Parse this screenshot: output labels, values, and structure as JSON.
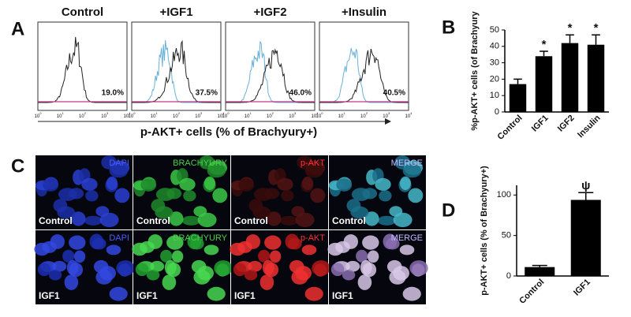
{
  "panel_labels": [
    "A",
    "B",
    "C",
    "D"
  ],
  "flow": {
    "samples": [
      "Control",
      "+IGF1",
      "+IGF2",
      "+Insulin"
    ],
    "gates": [
      "19.0%",
      "37.5%",
      "46.0%",
      "40.5%"
    ],
    "tick_base": "10",
    "tick_exponents": [
      "0",
      "1",
      "2",
      "3",
      "4"
    ],
    "xlabel": "p-AKT+ cells (% of Brachyury+)"
  },
  "chart_data": [
    {
      "type": "bar",
      "ylabel": "%p-AKT+ cells (of Brachyury",
      "categories": [
        "Control",
        "IGF1",
        "IGF2",
        "Insulin"
      ],
      "values": [
        17,
        34,
        42,
        41
      ],
      "errors": [
        3,
        3,
        5,
        6
      ],
      "annotations": [
        null,
        "*",
        "*",
        "*"
      ],
      "color": "#000000",
      "ylim": [
        0,
        50
      ],
      "yticks": [
        0,
        10,
        20,
        30,
        40,
        50
      ]
    },
    {
      "type": "bar",
      "ylabel": "p-AKT+ cells (% of Brachyury+)",
      "categories": [
        "Control",
        "IGF1"
      ],
      "values": [
        11,
        94
      ],
      "errors": [
        2,
        9
      ],
      "annotations": [
        null,
        "ψ"
      ],
      "color": "#000000",
      "ylim": [
        0,
        112
      ],
      "yticks": [
        0,
        50,
        100
      ]
    }
  ],
  "images": {
    "channels": [
      "DAPI",
      "BRACHYURY",
      "p-AKT",
      "MERGE"
    ],
    "conditions": [
      "Control",
      "IGF1"
    ]
  }
}
